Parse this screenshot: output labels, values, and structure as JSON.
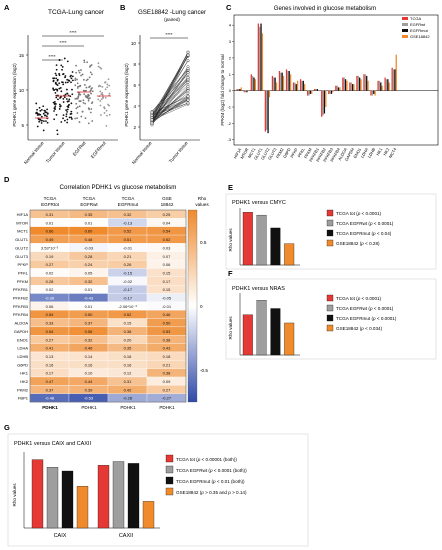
{
  "figure": {
    "panels": {
      "A": {
        "letter": "A",
        "title": "TCGA-Lung cancer",
        "ylabel": "PDHK1 gene expression (log2)",
        "yticks": [
          "5",
          "10",
          "15"
        ],
        "groups": [
          "Normal tissue",
          "Tumor tissue",
          "EGFRwt",
          "EGFRmut"
        ],
        "sig": [
          "****",
          "****",
          "****"
        ]
      },
      "B": {
        "letter": "B",
        "title": "GSE18842 -Lung cancer",
        "subtitle": "(paired)",
        "ylabel": "PDHK1 gene expression (log2)",
        "yticks": [
          "2",
          "4",
          "6",
          "8",
          "10"
        ],
        "groups": [
          "Normal tissue",
          "Tumor tissue"
        ],
        "sig": "****"
      },
      "C": {
        "letter": "C",
        "title": "Genes involved in glucose metabolism",
        "ylabel": "FPKM (log2) fold change to normal",
        "yticks": [
          "4",
          "3",
          "2",
          "1",
          "0",
          "-1",
          "-2",
          "-3"
        ],
        "legend": [
          "TCGA",
          "EGFRwt",
          "EGFRmut",
          "GSE18842"
        ],
        "genes": [
          "HIF1A",
          "MTOR",
          "MCT1",
          "GLUT1",
          "GLUT2",
          "GLUT3",
          "PKM2",
          "G6PD",
          "PFKP",
          "PFKL",
          "PFKM",
          "PFKFB1",
          "PFKFB2",
          "PFKFB3",
          "PFKFB4",
          "ALDOA",
          "GAPDH",
          "ENO1",
          "LDHA",
          "LDHB",
          "HK1",
          "HK2",
          "MCT4"
        ]
      },
      "D": {
        "letter": "D",
        "title": "Correlation PDHK1 vs glucose metabolism",
        "col_headers": [
          [
            "TCGA",
            "EGFRtot"
          ],
          [
            "TCGA",
            "EGFRwt"
          ],
          [
            "TCGA",
            "EGFRmut"
          ],
          [
            "GSE",
            "18842"
          ]
        ],
        "rho_label": [
          "Rho",
          "values"
        ],
        "scale_ticks": [
          "0.5",
          "0",
          "-0.5"
        ],
        "footer": [
          "PDHK1",
          "PDHK1",
          "PDHK1",
          "PDHK1"
        ],
        "rows": [
          {
            "gene": "HIF1A",
            "v": [
              "0.31",
              "0.35",
              "0.32",
              "0.25"
            ]
          },
          {
            "gene": "MTOR",
            "v": [
              "0.01",
              "0.01",
              "-0.13",
              "0.04"
            ]
          },
          {
            "gene": "MCT1",
            "v": [
              "0.66",
              "0.60",
              "0.52",
              "0.54"
            ]
          },
          {
            "gene": "GLUT1",
            "v": [
              "0.49",
              "0.48",
              "0.51",
              "0.52"
            ]
          },
          {
            "gene": "GLUT2",
            "v": [
              "3.53*10⁻³",
              "-0.03",
              "-0.01",
              "0.03"
            ]
          },
          {
            "gene": "GLUT3",
            "v": [
              "0.19",
              "0.28",
              "0.21",
              "0.07"
            ]
          },
          {
            "gene": "PFKP",
            "v": [
              "0.27",
              "0.24",
              "0.26",
              "0.06"
            ]
          },
          {
            "gene": "PFKL",
            "v": [
              "0.02",
              "0.05",
              "-0.15",
              "0.15"
            ]
          },
          {
            "gene": "PFKM",
            "v": [
              "0.28",
              "0.32",
              "-0.02",
              "0.17"
            ]
          },
          {
            "gene": "PFKFB1",
            "v": [
              "0.02",
              "0.01",
              "-0.17",
              "0.15"
            ]
          },
          {
            "gene": "PFKFB2",
            "v": [
              "-0.39",
              "-0.43",
              "-0.17",
              "-0.05"
            ]
          },
          {
            "gene": "PFKFB3",
            "v": [
              "0.06",
              "0.01",
              "-2.06*10⁻³",
              "-0.01"
            ]
          },
          {
            "gene": "PFKFB4",
            "v": [
              "0.54",
              "0.50",
              "0.52",
              "0.46"
            ]
          },
          {
            "gene": "ALDOA",
            "v": [
              "0.33",
              "0.37",
              "0.15",
              "0.50"
            ]
          },
          {
            "gene": "GAPDH",
            "v": [
              "0.54",
              "0.56",
              "0.38",
              "0.53"
            ]
          },
          {
            "gene": "ENO1",
            "v": [
              "0.27",
              "0.32",
              "0.20",
              "0.38"
            ]
          },
          {
            "gene": "LDHA",
            "v": [
              "0.41",
              "0.46",
              "0.35",
              "0.43"
            ]
          },
          {
            "gene": "LDHB",
            "v": [
              "0.13",
              "0.14",
              "0.16",
              "0.18"
            ]
          },
          {
            "gene": "G6PD",
            "v": [
              "0.16",
              "0.16",
              "0.16",
              "0.21"
            ]
          },
          {
            "gene": "HK1",
            "v": [
              "0.17",
              "0.10",
              "0.12",
              "0.38"
            ]
          },
          {
            "gene": "HK2",
            "v": [
              "0.47",
              "0.44",
              "0.31",
              "0.09"
            ]
          },
          {
            "gene": "PKM2",
            "v": [
              "0.37",
              "0.39",
              "0.42",
              "0.27"
            ]
          },
          {
            "gene": "FBP1",
            "v": [
              "-0.48",
              "-0.53",
              "-0.28",
              "-0.27"
            ]
          }
        ]
      },
      "E": {
        "letter": "E",
        "title": "PDHK1 versus CMYC",
        "ylabel": "Rho values",
        "legend": [
          {
            "label": "TCGA tot (",
            "p": "p",
            "rest": " < 0.0001)",
            "color": "#e53935"
          },
          {
            "label": "TCGA EGFRwt (",
            "p": "p",
            "rest": " < 0.0001)",
            "color": "#9e9e9e"
          },
          {
            "label": "TCGA EGFRmut (",
            "p": "p",
            "rest": " < 0.04)",
            "color": "#111111"
          },
          {
            "label": "GSE18842 (",
            "p": "p",
            "rest": " < 0.28)",
            "color": "#ef8a2d"
          }
        ]
      },
      "F": {
        "letter": "F",
        "title": "PDHK1 versus NRAS",
        "ylabel": "Rho values",
        "legend": [
          {
            "label": "TCGA tot (",
            "p": "p",
            "rest": " < 0.0001)",
            "color": "#e53935"
          },
          {
            "label": "TCGA EGFRwt (",
            "p": "p",
            "rest": " < 0.0001)",
            "color": "#9e9e9e"
          },
          {
            "label": "TCGA EGFRmut (",
            "p": "p",
            "rest": " < 0.0001)",
            "color": "#111111"
          },
          {
            "label": "GSE18842 (",
            "p": "p",
            "rest": " < 0.034)",
            "color": "#ef8a2d"
          }
        ]
      },
      "G": {
        "letter": "G",
        "title": "PDHK1 versus CAIX and CAXII",
        "ylabel": "Rho values",
        "categories": [
          "CAIX",
          "CAXII"
        ],
        "legend": [
          {
            "label": "TCGA tot (",
            "p": "p",
            "rest": " < 0.00001 (both))",
            "color": "#e53935"
          },
          {
            "label": "TCGA EGFRwt (",
            "p": "p",
            "rest": " < 0.0001 (both))",
            "color": "#9e9e9e"
          },
          {
            "label": "TCGA EGFRmut (",
            "p": "p",
            "rest": " < 0.01 (both))",
            "color": "#111111"
          },
          {
            "label": "GSE18842 (",
            "p": "p",
            "rest": " > 0.35 and p > 0.14)",
            "color": "#ef8a2d"
          }
        ]
      }
    },
    "colors": {
      "tcga": "#e53935",
      "egfrwt": "#9e9e9e",
      "egfrmut": "#111111",
      "gse": "#ef8a2d",
      "pos": "#ef8a2d",
      "neg": "#2f49a8"
    }
  },
  "chart_data": [
    {
      "panel": "C",
      "type": "bar",
      "series_names": [
        "TCGA",
        "EGFRwt",
        "EGFRmut",
        "GSE18842"
      ],
      "categories": [
        "HIF1A",
        "MTOR",
        "MCT1",
        "GLUT1",
        "GLUT2",
        "GLUT3",
        "PKM2",
        "G6PD",
        "PFKP",
        "PFKL",
        "PFKM",
        "PFKFB1",
        "PFKFB2",
        "PFKFB3",
        "PFKFB4",
        "ALDOA",
        "GAPDH",
        "ENO1",
        "LDHA",
        "LDHB",
        "HK1",
        "HK2",
        "MCT4"
      ],
      "series": [
        {
          "name": "TCGA",
          "values": [
            0.1,
            -0.1,
            1.0,
            4.1,
            -2.5,
            0.9,
            1.2,
            1.3,
            0.5,
            0.7,
            -0.3,
            0.1,
            -1.6,
            -0.2,
            0.3,
            0.8,
            0.5,
            0.9,
            1.0,
            -0.3,
            0.6,
            0.8,
            1.4
          ]
        },
        {
          "name": "EGFRwt",
          "values": [
            0.1,
            -0.1,
            0.9,
            3.9,
            -2.4,
            0.8,
            1.1,
            1.2,
            0.5,
            0.6,
            -0.3,
            0.1,
            -1.5,
            -0.2,
            0.3,
            0.8,
            0.5,
            0.9,
            1.0,
            -0.3,
            0.6,
            0.7,
            1.3
          ]
        },
        {
          "name": "EGFRmut",
          "values": [
            0.1,
            -0.1,
            0.8,
            4.1,
            -2.6,
            0.8,
            1.1,
            1.2,
            0.4,
            0.6,
            -0.2,
            0.1,
            -1.4,
            -0.2,
            0.2,
            0.7,
            0.4,
            0.8,
            0.9,
            -0.2,
            0.5,
            0.7,
            1.3
          ]
        },
        {
          "name": "GSE18842",
          "values": [
            0.2,
            0.0,
            0.7,
            3.5,
            -0.4,
            0.5,
            0.9,
            1.0,
            0.6,
            0.4,
            -0.2,
            0.0,
            -1.0,
            -0.1,
            0.2,
            0.6,
            0.4,
            0.7,
            0.6,
            -0.3,
            0.3,
            0.5,
            2.2
          ]
        }
      ],
      "ylim": [
        -3.2,
        4.5
      ]
    },
    {
      "panel": "E",
      "type": "bar",
      "series_names": [
        "TCGA tot",
        "TCGA EGFRwt",
        "TCGA EGFRmut",
        "GSE18842"
      ],
      "values": [
        0.37,
        0.35,
        0.26,
        0.15
      ],
      "ylim": [
        0,
        0.4
      ]
    },
    {
      "panel": "F",
      "type": "bar",
      "series_names": [
        "TCGA tot",
        "TCGA EGFRwt",
        "TCGA EGFRmut",
        "GSE18842"
      ],
      "values": [
        0.39,
        0.53,
        0.45,
        0.31
      ],
      "ylim": [
        0,
        0.6
      ]
    },
    {
      "panel": "G",
      "type": "bar",
      "categories": [
        "CAIX",
        "CAXII"
      ],
      "series": [
        {
          "name": "TCGA tot",
          "values": [
            0.36,
            0.33
          ]
        },
        {
          "name": "TCGA EGFRwt",
          "values": [
            0.32,
            0.35
          ]
        },
        {
          "name": "TCGA EGFRmut",
          "values": [
            0.3,
            0.34
          ]
        },
        {
          "name": "GSE18842",
          "values": [
            0.22,
            0.14
          ]
        }
      ],
      "ylim": [
        0,
        0.4
      ]
    }
  ]
}
